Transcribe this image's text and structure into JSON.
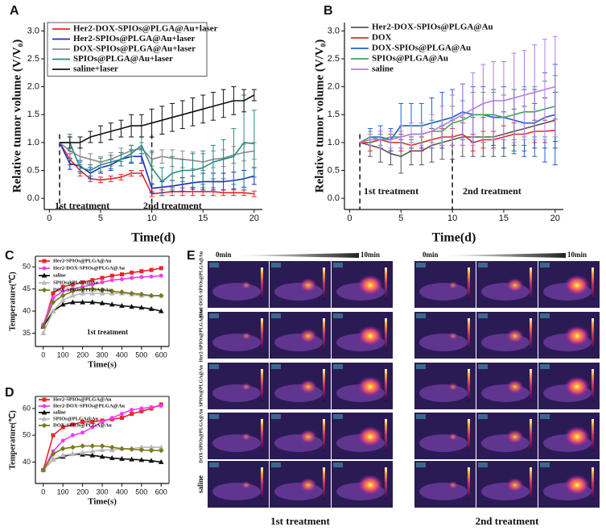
{
  "chart_data": [
    {
      "panel": "A",
      "type": "line",
      "xlabel": "Time(d)",
      "ylabel": "Relative tumor volume (V/V₀)",
      "x": [
        1,
        2,
        3,
        4,
        5,
        6,
        7,
        8,
        9,
        10,
        11,
        12,
        13,
        14,
        15,
        16,
        17,
        18,
        19,
        20
      ],
      "xlim": [
        -0.5,
        20.8
      ],
      "ylim": [
        -0.2,
        3.15
      ],
      "xticks": [
        0,
        5,
        10,
        15,
        20
      ],
      "yticks": [
        {
          "value": 0,
          "label": "0.0"
        },
        {
          "value": 0.5,
          "label": "0.5"
        },
        {
          "value": 1,
          "label": "1.0"
        },
        {
          "value": 1.5,
          "label": "1.5"
        },
        {
          "value": 2,
          "label": "2.0"
        },
        {
          "value": 2.5,
          "label": "2.5"
        },
        {
          "value": 3,
          "label": "3.0"
        }
      ],
      "vlines": [
        1,
        10
      ],
      "annotations": [
        "1st treatment",
        "2nd treatment"
      ],
      "legend": "upper left",
      "series": [
        {
          "name": "Her2-DOX-SPIOs@PLGA@Au+laser",
          "color": "#e8262a",
          "values": [
            1,
            0.7,
            0.5,
            0.35,
            0.33,
            0.35,
            0.38,
            0.45,
            0.45,
            0.08,
            0.1,
            0.12,
            0.12,
            0.12,
            0.12,
            0.12,
            0.1,
            0.1,
            0.1,
            0.08
          ],
          "errors": [
            0,
            0.1,
            0.1,
            0.05,
            0.05,
            0.05,
            0.05,
            0.05,
            0.05,
            0.05,
            0.05,
            0.07,
            0.07,
            0.07,
            0.07,
            0.07,
            0.05,
            0.05,
            0.05,
            0.05
          ]
        },
        {
          "name": "Her2-SPIOs@PLGA@Au+laser",
          "color": "#1a2fbf",
          "values": [
            1,
            0.62,
            0.58,
            0.45,
            0.55,
            0.6,
            0.7,
            0.75,
            0.75,
            0.18,
            0.2,
            0.22,
            0.25,
            0.28,
            0.3,
            0.3,
            0.3,
            0.32,
            0.35,
            0.4
          ],
          "errors": [
            0,
            0.1,
            0.1,
            0.1,
            0.1,
            0.1,
            0.12,
            0.12,
            0.12,
            0.08,
            0.1,
            0.1,
            0.12,
            0.12,
            0.15,
            0.15,
            0.15,
            0.15,
            0.15,
            0.15
          ]
        },
        {
          "name": "DOX-SPIOs@PLGA@Au+laser",
          "color": "#8c8c8c",
          "values": [
            1,
            0.85,
            0.75,
            0.7,
            0.65,
            0.7,
            0.78,
            0.85,
            0.9,
            0.7,
            0.75,
            0.72,
            0.7,
            0.68,
            0.65,
            0.7,
            0.72,
            0.78,
            0.82,
            0.85
          ],
          "errors": [
            0,
            0.15,
            0.15,
            0.1,
            0.1,
            0.12,
            0.12,
            0.1,
            0.1,
            0.12,
            0.12,
            0.15,
            0.15,
            0.15,
            0.15,
            0.15,
            0.15,
            0.15,
            0.15,
            0.15
          ]
        },
        {
          "name": "SPIOs@PLGA@Au+laser",
          "color": "#2a8a80",
          "values": [
            1,
            1,
            0.55,
            0.5,
            0.6,
            0.65,
            0.7,
            0.8,
            0.95,
            0.55,
            0.3,
            0.45,
            0.5,
            0.5,
            0.55,
            0.65,
            0.7,
            0.75,
            1,
            0.98
          ],
          "errors": [
            0,
            0.15,
            0.1,
            0.1,
            0.12,
            0.12,
            0.12,
            0.15,
            0.15,
            0.3,
            0.25,
            0.3,
            0.2,
            0.3,
            0.3,
            0.3,
            0.35,
            0.5,
            0.85,
            0.6
          ]
        },
        {
          "name": "saline+laser",
          "color": "#111111",
          "values": [
            1,
            1,
            1,
            1.1,
            1.15,
            1.2,
            1.25,
            1.3,
            1.3,
            1.35,
            1.4,
            1.45,
            1.5,
            1.55,
            1.6,
            1.65,
            1.7,
            1.75,
            1.75,
            1.85
          ],
          "errors": [
            0,
            0.1,
            0.1,
            0.1,
            0.15,
            0.15,
            0.15,
            0.2,
            0.2,
            0.25,
            0.25,
            0.25,
            0.25,
            0.25,
            0.25,
            0.25,
            0.25,
            0.25,
            0.2,
            0.1
          ]
        }
      ]
    },
    {
      "panel": "B",
      "type": "line",
      "xlabel": "Time(d)",
      "ylabel": "Relative tumor volume (V/V₀)",
      "x": [
        1,
        2,
        3,
        4,
        5,
        6,
        7,
        8,
        9,
        10,
        11,
        12,
        13,
        14,
        15,
        16,
        17,
        18,
        19,
        20
      ],
      "xlim": [
        -0.5,
        20.8
      ],
      "ylim": [
        -0.2,
        3.15
      ],
      "xticks": [
        0,
        5,
        10,
        15,
        20
      ],
      "yticks": [
        {
          "value": 0,
          "label": "0.0"
        },
        {
          "value": 0.5,
          "label": "0.5"
        },
        {
          "value": 1,
          "label": "1.0"
        },
        {
          "value": 1.5,
          "label": "1.5"
        },
        {
          "value": 2,
          "label": "2.0"
        },
        {
          "value": 2.5,
          "label": "2.5"
        },
        {
          "value": 3,
          "label": "3.0"
        }
      ],
      "vlines": [
        1,
        10
      ],
      "annotations": [
        "1st treatment",
        "2nd treatment"
      ],
      "legend": "upper left",
      "series": [
        {
          "name": "Her2-DOX-SPIOs@PLGA@Au",
          "color": "#555555",
          "values": [
            1,
            0.95,
            0.9,
            0.8,
            0.75,
            0.85,
            0.85,
            0.95,
            1,
            1.05,
            1.1,
            1.1,
            1.1,
            1.1,
            1.15,
            1.2,
            1.25,
            1.3,
            1.35,
            1.4
          ],
          "errors": [
            0,
            0.2,
            0.25,
            0.2,
            0.3,
            0.25,
            0.25,
            0.3,
            0.3,
            0.35,
            0.35,
            0.35,
            0.35,
            0.35,
            0.4,
            0.4,
            0.4,
            0.4,
            0.45,
            0.5
          ]
        },
        {
          "name": "DOX",
          "color": "#e8262a",
          "values": [
            1,
            1,
            1.05,
            1,
            1,
            0.95,
            1,
            1.05,
            1.1,
            1.1,
            1.15,
            1,
            1.05,
            1.05,
            1.1,
            1.15,
            1.15,
            1.2,
            1.2,
            1.22
          ],
          "errors": [
            0,
            0.15,
            0.15,
            0.15,
            0.15,
            0.1,
            0.15,
            0.15,
            0.15,
            0.15,
            0.2,
            0.15,
            0.15,
            0.15,
            0.2,
            0.2,
            0.2,
            0.2,
            0.2,
            0.2
          ]
        },
        {
          "name": "DOX-SPIOs@PLGA@Au",
          "color": "#1f5fd0",
          "values": [
            1,
            1.1,
            1.1,
            1.05,
            1.3,
            1.3,
            1.3,
            1.35,
            1.4,
            1.45,
            1.55,
            1.5,
            1.5,
            1.45,
            1.45,
            1.4,
            1.35,
            1.35,
            1.45,
            1.5
          ],
          "errors": [
            0,
            0.15,
            0.2,
            0.2,
            0.4,
            0.4,
            0.4,
            0.45,
            0.5,
            0.5,
            0.5,
            0.5,
            0.5,
            0.5,
            0.55,
            0.55,
            0.6,
            0.6,
            0.8,
            0.9
          ]
        },
        {
          "name": "SPIOs@PLGA@Au",
          "color": "#3aa85a",
          "values": [
            1,
            1.1,
            1.05,
            1.1,
            1.1,
            1.15,
            1.15,
            1.2,
            1.2,
            1.35,
            1.4,
            1.5,
            1.5,
            1.5,
            1.45,
            1.5,
            1.55,
            1.55,
            1.6,
            1.65
          ],
          "errors": [
            0,
            0.1,
            0.1,
            0.1,
            0.1,
            0.15,
            0.15,
            0.2,
            0.2,
            0.3,
            0.35,
            0.4,
            0.4,
            0.4,
            0.4,
            0.45,
            0.45,
            0.45,
            0.5,
            0.55
          ]
        },
        {
          "name": "saline",
          "color": "#b57be6",
          "values": [
            1,
            1.05,
            1.05,
            1.05,
            1.1,
            1.15,
            1.15,
            1.2,
            1.3,
            1.4,
            1.5,
            1.6,
            1.7,
            1.75,
            1.75,
            1.8,
            1.85,
            1.9,
            1.95,
            2
          ],
          "errors": [
            0,
            0.1,
            0.15,
            0.15,
            0.2,
            0.2,
            0.2,
            0.3,
            0.35,
            0.45,
            0.55,
            0.65,
            0.7,
            0.7,
            0.7,
            0.8,
            0.8,
            0.85,
            0.9,
            0.9
          ]
        }
      ]
    },
    {
      "panel": "C",
      "type": "line",
      "xlabel": "Time(s)",
      "ylabel": "Temperature(℃)",
      "x": [
        0,
        50,
        100,
        150,
        200,
        250,
        300,
        350,
        400,
        450,
        500,
        550,
        600
      ],
      "xlim": [
        -40,
        640
      ],
      "ylim": [
        32,
        52.4
      ],
      "xticks": [
        0,
        100,
        200,
        300,
        400,
        500,
        600
      ],
      "yticks": [
        35,
        40,
        45,
        50
      ],
      "annotations": [
        "1st treatment"
      ],
      "legend": "upper left",
      "series": [
        {
          "name": "Her2-SPIOs@PLGA@Au",
          "color": "#e8262a",
          "marker": "square",
          "values": [
            36.5,
            44,
            45.5,
            46,
            46.5,
            47,
            47.5,
            48,
            48.3,
            48.7,
            49,
            49.3,
            49.7
          ]
        },
        {
          "name": "Her2-DOX-SPIOs@PLGA@Au",
          "color": "#f03cf0",
          "marker": "circle",
          "values": [
            37,
            43,
            44.5,
            45,
            45.5,
            46,
            46.5,
            47,
            47.2,
            47.5,
            47.7,
            47.8,
            48
          ]
        },
        {
          "name": "saline",
          "color": "#111111",
          "marker": "triangle",
          "values": [
            36.5,
            40,
            41.5,
            42,
            42,
            42,
            41.8,
            41.5,
            41.2,
            41,
            40.8,
            40.5,
            40
          ]
        },
        {
          "name": "SPIOs@PLGA@Au",
          "color": "#b8b8b8",
          "marker": "triangle",
          "values": [
            35,
            40,
            42.5,
            43.5,
            44,
            44,
            44,
            44,
            44,
            43.8,
            43.5,
            43.5,
            43.5
          ]
        },
        {
          "name": "DOX-SPIOs@PLGA@Au",
          "color": "#7a7a1e",
          "marker": "diamond",
          "values": [
            36.5,
            42,
            43.5,
            44.5,
            45,
            45,
            44.8,
            44.5,
            44.3,
            44,
            43.8,
            43.5,
            43.5
          ]
        }
      ]
    },
    {
      "panel": "D",
      "type": "line",
      "xlabel": "Time(s)",
      "ylabel": "Temperature(℃)",
      "x": [
        0,
        50,
        100,
        150,
        200,
        250,
        300,
        350,
        400,
        450,
        500,
        550,
        600
      ],
      "xlim": [
        -40,
        640
      ],
      "ylim": [
        32,
        64.5
      ],
      "xticks": [
        0,
        100,
        200,
        300,
        400,
        500,
        600
      ],
      "yticks": [
        40,
        50,
        60
      ],
      "legend": "upper left",
      "series": [
        {
          "name": "Her2-SPIOs@PLGA@Au",
          "color": "#e8262a",
          "marker": "square",
          "values": [
            37,
            50,
            53,
            54,
            55,
            55,
            55.5,
            56,
            56.5,
            58,
            59,
            60,
            61.5
          ]
        },
        {
          "name": "Her2-DOX-SPIOs@PLGA@Au",
          "color": "#f03cf0",
          "marker": "circle",
          "values": [
            37,
            44,
            48,
            50,
            51,
            53,
            55,
            56.5,
            58,
            59.5,
            60,
            60.5,
            61
          ]
        },
        {
          "name": "saline",
          "color": "#111111",
          "marker": "triangle",
          "values": [
            37,
            41,
            42,
            43,
            42.8,
            42.5,
            42,
            41.5,
            41.2,
            41,
            40.8,
            40.5,
            40
          ]
        },
        {
          "name": "SPIOs@PLGA@Au",
          "color": "#b8b8b8",
          "marker": "triangle",
          "values": [
            37,
            41,
            42.5,
            43,
            43.5,
            44,
            44.5,
            44.5,
            45,
            45,
            45.5,
            45.5,
            45.5
          ]
        },
        {
          "name": "DOX-SPIOs@PLGA@Au",
          "color": "#7a7a1e",
          "marker": "diamond",
          "values": [
            37,
            43,
            45,
            45.5,
            46,
            46,
            46,
            45.5,
            45,
            44.8,
            44.5,
            44.3,
            44.3
          ]
        }
      ]
    }
  ],
  "thermal": {
    "panel": "E",
    "start": "0min",
    "end": "10min",
    "rows": [
      "Her2-DOX-SPIOs@PLGA@Au",
      "Her2-SPIOs@PLGA@Au",
      "SPIOs@PLGA@Au",
      "DOX-SPIOs@PLGA@Au",
      "saline"
    ],
    "groups": [
      "1st treatment",
      "2nd treatment"
    ]
  }
}
